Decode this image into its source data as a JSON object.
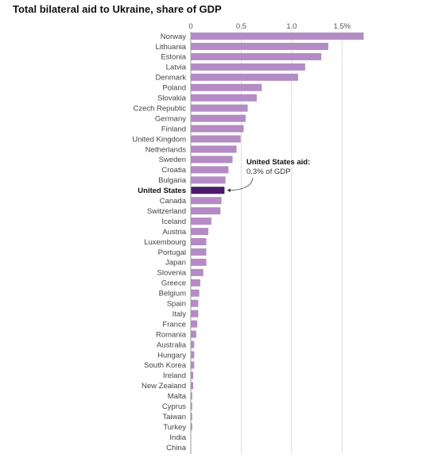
{
  "chart_data": {
    "type": "bar",
    "orientation": "horizontal",
    "title": "Total bilateral aid to Ukraine, share of GDP",
    "xlim": [
      0,
      1.75
    ],
    "x_ticks": [
      0,
      0.5,
      1.0,
      1.5
    ],
    "x_tick_labels": [
      "0",
      "0.5",
      "1.0",
      "1.5%"
    ],
    "tick_position": "top",
    "grid": true,
    "categories": [
      "Norway",
      "Lithuania",
      "Estonia",
      "Latvia",
      "Denmark",
      "Poland",
      "Slovakia",
      "Czech Republic",
      "Germany",
      "Finland",
      "United Kingdom",
      "Netherlands",
      "Sweden",
      "Croatia",
      "Bulgaria",
      "United States",
      "Canada",
      "Switzerland",
      "Iceland",
      "Austria",
      "Luxembourg",
      "Portugal",
      "Japan",
      "Slovenia",
      "Greece",
      "Belgium",
      "Spain",
      "Italy",
      "France",
      "Romania",
      "Australia",
      "Hungary",
      "South Korea",
      "Ireland",
      "New Zealand",
      "Malta",
      "Cyprus",
      "Taiwan",
      "Turkey",
      "India",
      "China"
    ],
    "values": [
      1.71,
      1.36,
      1.29,
      1.13,
      1.06,
      0.7,
      0.65,
      0.56,
      0.54,
      0.52,
      0.49,
      0.45,
      0.41,
      0.37,
      0.34,
      0.33,
      0.3,
      0.29,
      0.2,
      0.17,
      0.15,
      0.15,
      0.15,
      0.12,
      0.09,
      0.08,
      0.07,
      0.07,
      0.06,
      0.05,
      0.03,
      0.03,
      0.03,
      0.02,
      0.02,
      0.01,
      0.01,
      0.01,
      0.01,
      0.0,
      0.0
    ],
    "highlight": "United States",
    "colors": {
      "bar": "#b48bc4",
      "highlight_bar": "#4a1a6b"
    },
    "annotation": {
      "title": "United States aid:",
      "body": "0.3% of GDP",
      "target": "United States"
    }
  }
}
